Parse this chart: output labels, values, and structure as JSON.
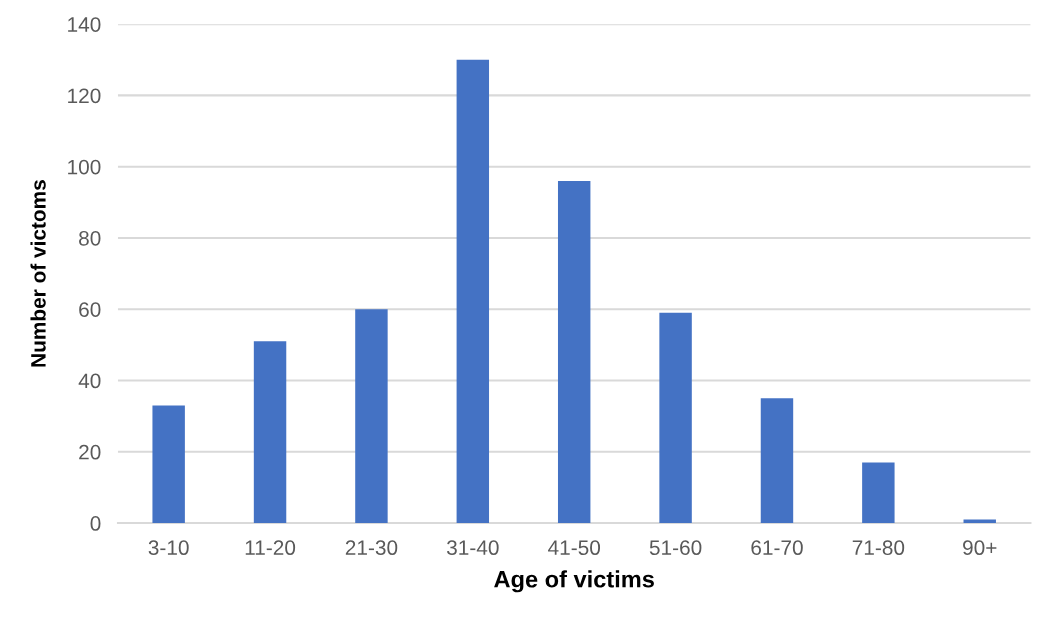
{
  "chart_data": {
    "type": "bar",
    "categories": [
      "3-10",
      "11-20",
      "21-30",
      "31-40",
      "41-50",
      "51-60",
      "61-70",
      "71-80",
      "90+"
    ],
    "values": [
      33,
      51,
      60,
      130,
      96,
      59,
      35,
      17,
      1
    ],
    "color": "#4472c4",
    "xlabel": "Age of victims",
    "ylabel": "Number of victoms",
    "ylim": [
      0,
      140
    ],
    "yticks": [
      0,
      20,
      40,
      60,
      80,
      100,
      120,
      140
    ],
    "grid": "y"
  }
}
